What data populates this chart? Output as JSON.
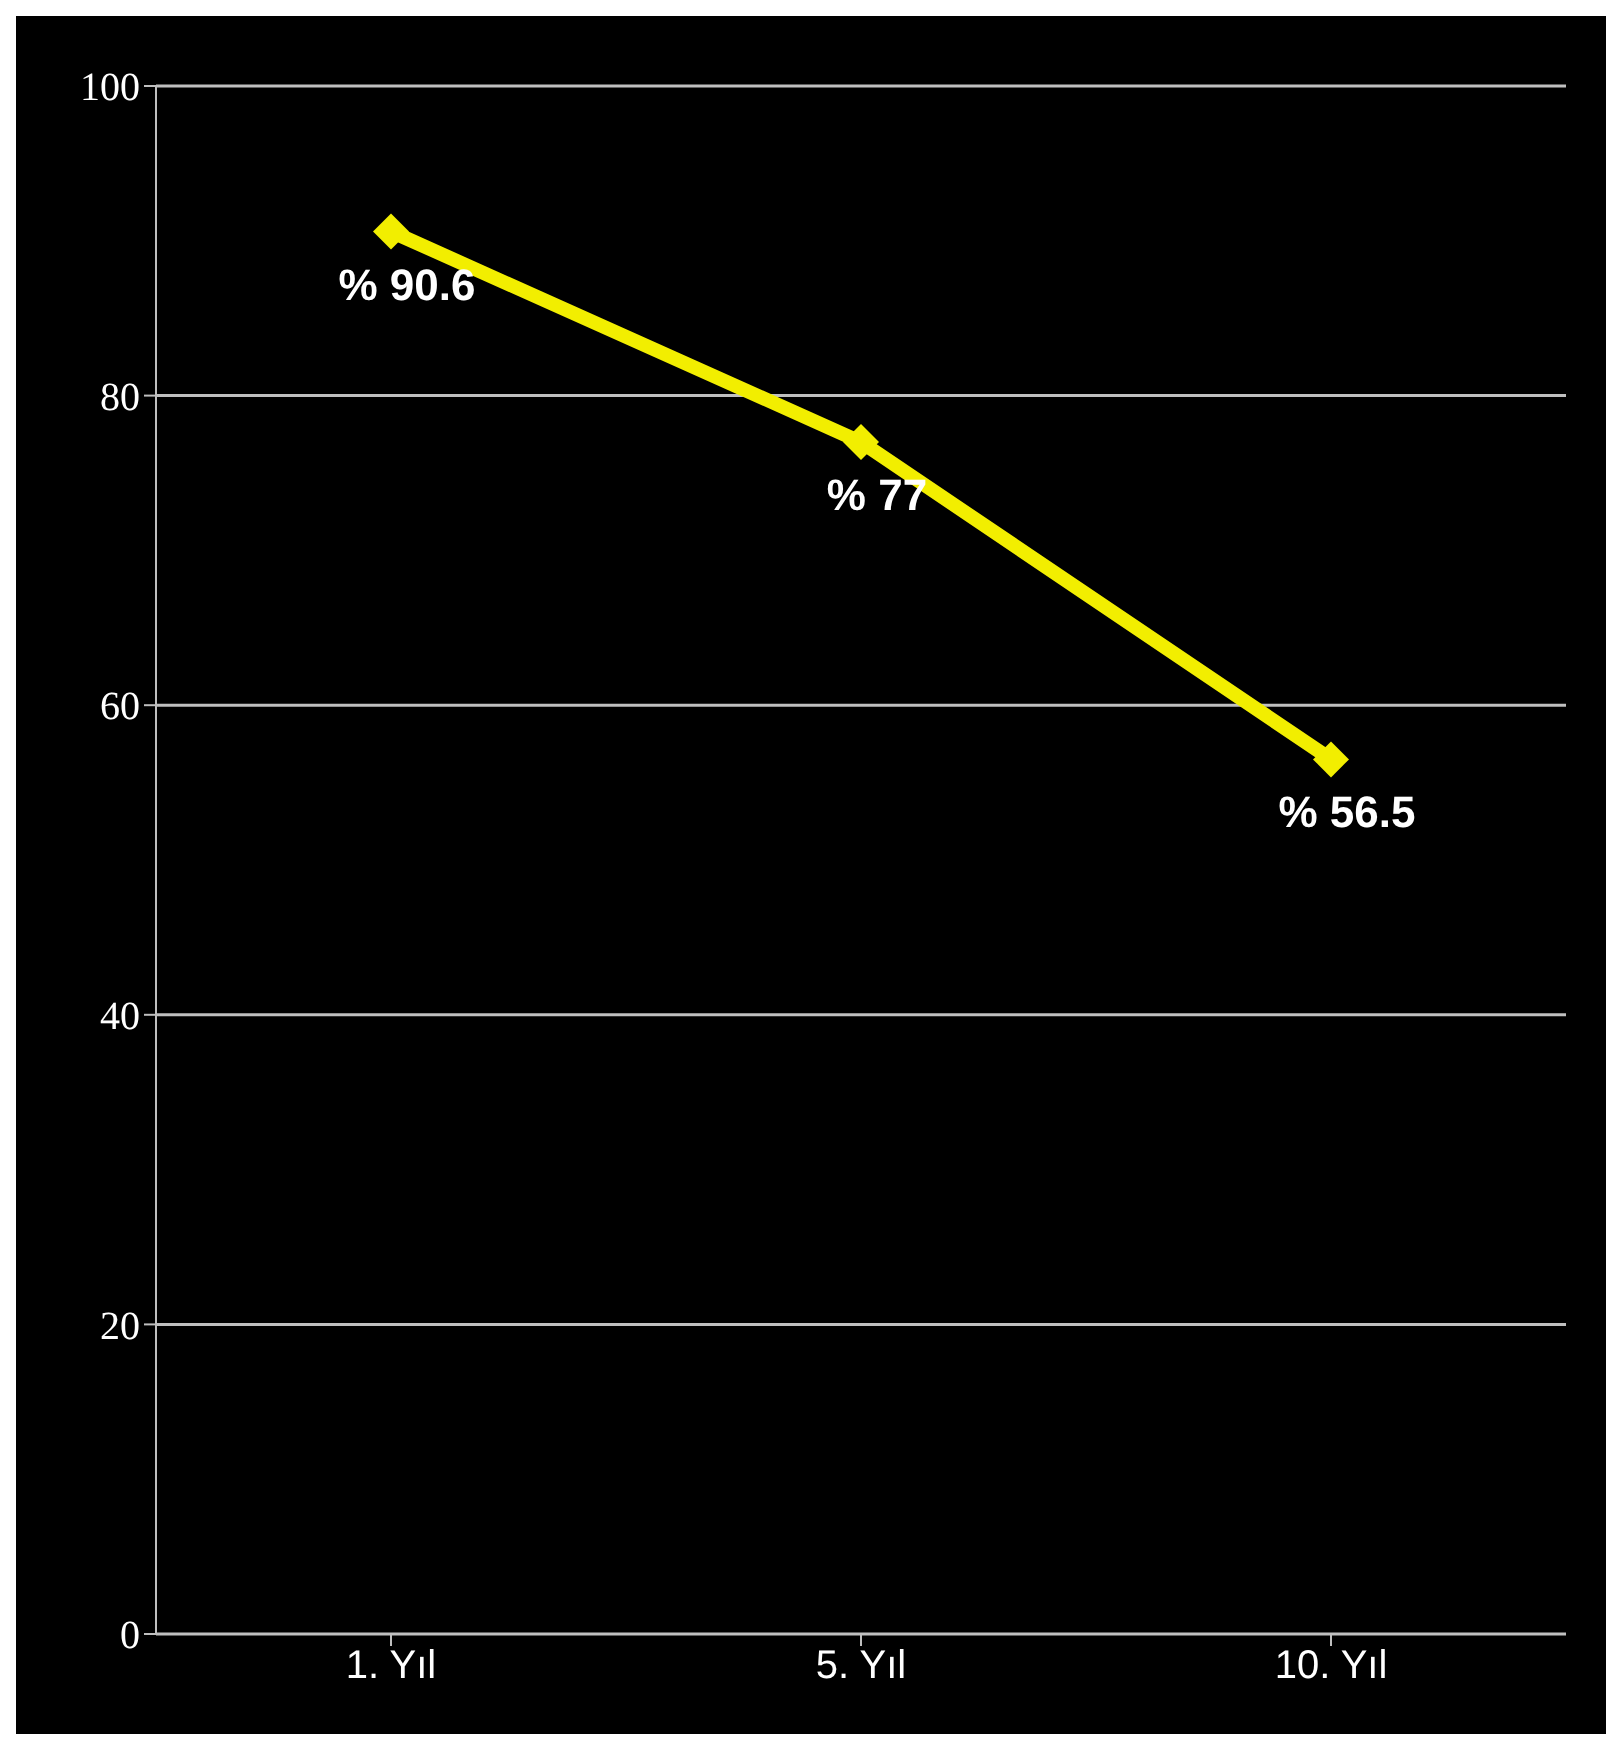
{
  "chart_data": {
    "type": "line",
    "categories": [
      "1. Yıl",
      "5. Yıl",
      "10. Yıl"
    ],
    "series": [
      {
        "color": "#f2ee00",
        "values": [
          90.6,
          77,
          56.5
        ],
        "value_labels": [
          "% 90.6",
          "% 77",
          "% 56.5"
        ]
      }
    ],
    "ylim": [
      0,
      100
    ],
    "yticks": [
      0,
      20,
      40,
      60,
      80,
      100
    ],
    "grid": "y",
    "marker": "diamond",
    "line_style": "solid",
    "legend": false
  }
}
